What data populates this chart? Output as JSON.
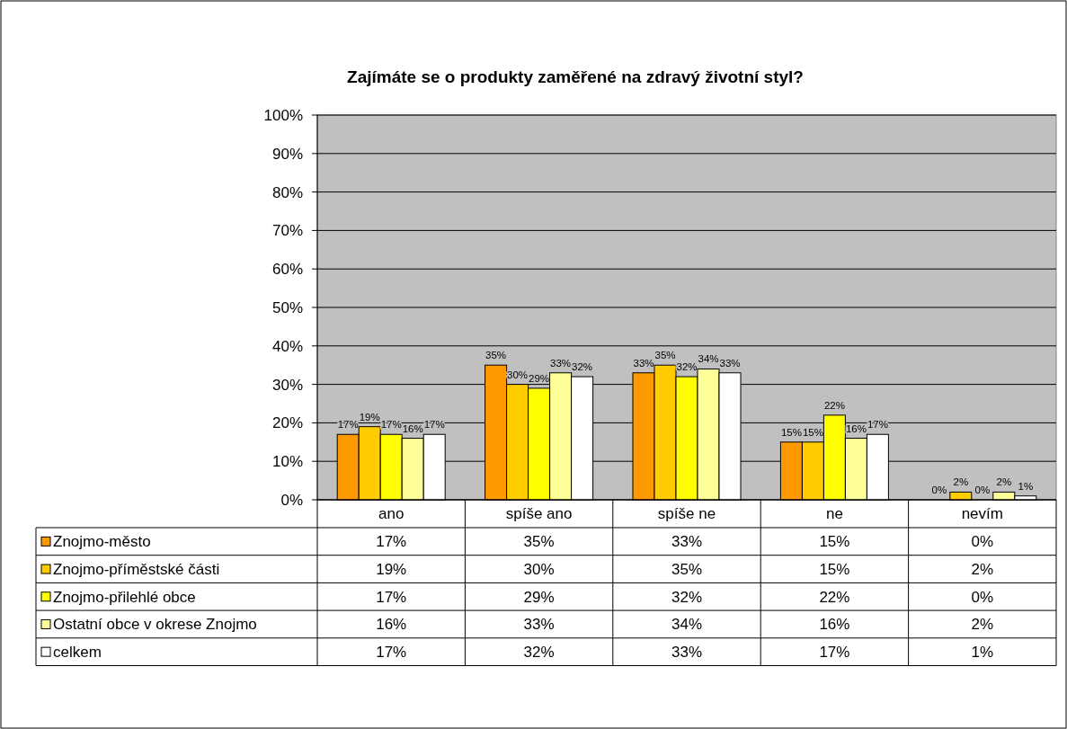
{
  "chart_data": {
    "type": "bar",
    "title": "Zajímáte se o produkty zaměřené na zdravý životní styl?",
    "categories": [
      "ano",
      "spíše ano",
      "spíše ne",
      "ne",
      "nevím"
    ],
    "series": [
      {
        "name": "Znojmo-město",
        "color": "#ff9900",
        "values": [
          17,
          35,
          33,
          15,
          0
        ],
        "value_labels": [
          "17%",
          "35%",
          "33%",
          "15%",
          "0%"
        ]
      },
      {
        "name": "Znojmo-příměstské části",
        "color": "#ffcc00",
        "values": [
          19,
          30,
          35,
          15,
          2
        ],
        "value_labels": [
          "19%",
          "30%",
          "35%",
          "15%",
          "2%"
        ]
      },
      {
        "name": "Znojmo-přilehlé obce",
        "color": "#ffff00",
        "values": [
          17,
          29,
          32,
          22,
          0
        ],
        "value_labels": [
          "17%",
          "29%",
          "32%",
          "22%",
          "0%"
        ]
      },
      {
        "name": "Ostatní obce v okrese Znojmo",
        "color": "#ffff99",
        "values": [
          16,
          33,
          34,
          16,
          2
        ],
        "value_labels": [
          "16%",
          "33%",
          "34%",
          "16%",
          "2%"
        ]
      },
      {
        "name": "celkem",
        "color": "#ffffff",
        "values": [
          17,
          32,
          33,
          17,
          1
        ],
        "value_labels": [
          "17%",
          "32%",
          "33%",
          "17%",
          "1%"
        ]
      }
    ],
    "ylim": [
      0,
      100
    ],
    "yticks": [
      {
        "value": 0,
        "label": "0%"
      },
      {
        "value": 10,
        "label": "10%"
      },
      {
        "value": 20,
        "label": "20%"
      },
      {
        "value": 30,
        "label": "30%"
      },
      {
        "value": 40,
        "label": "40%"
      },
      {
        "value": 50,
        "label": "50%"
      },
      {
        "value": 60,
        "label": "60%"
      },
      {
        "value": 70,
        "label": "70%"
      },
      {
        "value": 80,
        "label": "80%"
      },
      {
        "value": 90,
        "label": "90%"
      },
      {
        "value": 100,
        "label": "100%"
      }
    ],
    "grid": "y",
    "legend": "bottom"
  }
}
